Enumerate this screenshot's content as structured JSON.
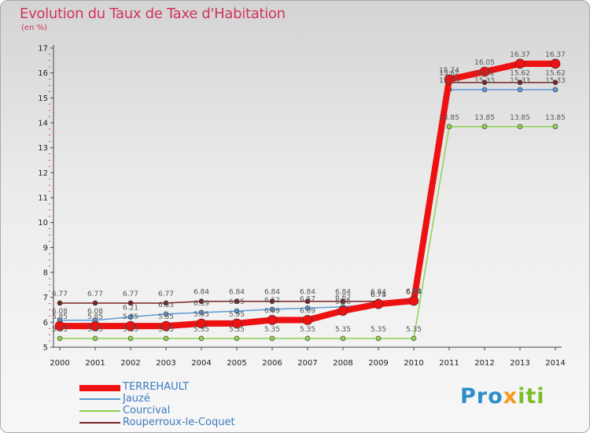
{
  "header": {
    "title": "Evolution du Taux de Taxe d'Habitation",
    "subtitle": "(en %)"
  },
  "brand": {
    "logo_text": "Proxiti"
  },
  "chart_data": {
    "type": "line",
    "title": "Evolution du Taux de Taxe d'Habitation",
    "ylabel": "(en %)",
    "xlabel": "",
    "x": [
      "2000",
      "2001",
      "2002",
      "2003",
      "2004",
      "2005",
      "2006",
      "2007",
      "2008",
      "2009",
      "2010",
      "2011",
      "2012",
      "2013",
      "2014"
    ],
    "ylim": [
      5,
      17
    ],
    "yticks": [
      5,
      6,
      7,
      8,
      9,
      10,
      11,
      12,
      13,
      14,
      15,
      16,
      17
    ],
    "grid": false,
    "legend_position": "bottom-left",
    "series": [
      {
        "name": "TERREHAULT",
        "color": "#ee1111",
        "width": 8,
        "marker_r": 6,
        "values": [
          5.85,
          5.85,
          5.85,
          5.85,
          5.95,
          5.95,
          6.09,
          6.09,
          6.46,
          6.73,
          6.86,
          15.74,
          16.05,
          16.37,
          16.37
        ]
      },
      {
        "name": "Jauzé",
        "color": "#5b9bd5",
        "width": 1.5,
        "marker_r": 3,
        "values": [
          6.08,
          6.08,
          6.21,
          6.33,
          6.39,
          6.45,
          6.52,
          6.57,
          6.62,
          6.74,
          6.84,
          15.33,
          15.33,
          15.33,
          15.33
        ]
      },
      {
        "name": "Courcival",
        "color": "#92d050",
        "width": 1.5,
        "marker_r": 3,
        "values": [
          5.35,
          5.35,
          5.35,
          5.35,
          5.35,
          5.35,
          5.35,
          5.35,
          5.35,
          5.35,
          5.35,
          13.85,
          13.85,
          13.85,
          13.85
        ]
      },
      {
        "name": "Rouperroux-le-Coquet",
        "color": "#7b2323",
        "width": 1.5,
        "marker_r": 3,
        "values": [
          6.77,
          6.77,
          6.77,
          6.77,
          6.84,
          6.84,
          6.84,
          6.84,
          6.84,
          6.84,
          6.84,
          15.62,
          15.62,
          15.62,
          15.62
        ]
      }
    ],
    "data_labels": [
      {
        "series": 3,
        "labels": [
          "6.77",
          "6.77",
          "6.77",
          "6.77",
          "6.84",
          "6.84",
          "6.84",
          "6.84",
          "6.84",
          "6.84",
          "6.84",
          "15.62",
          "15.62",
          "15.62",
          "15.62"
        ]
      },
      {
        "series": 1,
        "labels": [
          "6.08",
          "6.08",
          "6.21",
          "6.33",
          "6.39",
          "6.45",
          "6.52",
          "6.57",
          "6.62",
          "6.74",
          "6.84",
          "15.33",
          "15.33",
          "15.33",
          "15.33"
        ]
      },
      {
        "series": 0,
        "labels": [
          "5.85",
          "5.85",
          "5.85",
          "5.85",
          "5.95",
          "5.95",
          "6.09",
          "6.09",
          "6.46",
          "6.73",
          "6.86",
          "15.74",
          "16.05",
          "16.37",
          "16.37"
        ]
      },
      {
        "series": 2,
        "labels": [
          "5.35",
          "5.35",
          "5.35",
          "5.35",
          "5.35",
          "5.35",
          "5.35",
          "5.35",
          "5.35",
          "5.35",
          "5.35",
          "13.85",
          "13.85",
          "13.85",
          "13.85"
        ]
      }
    ]
  }
}
